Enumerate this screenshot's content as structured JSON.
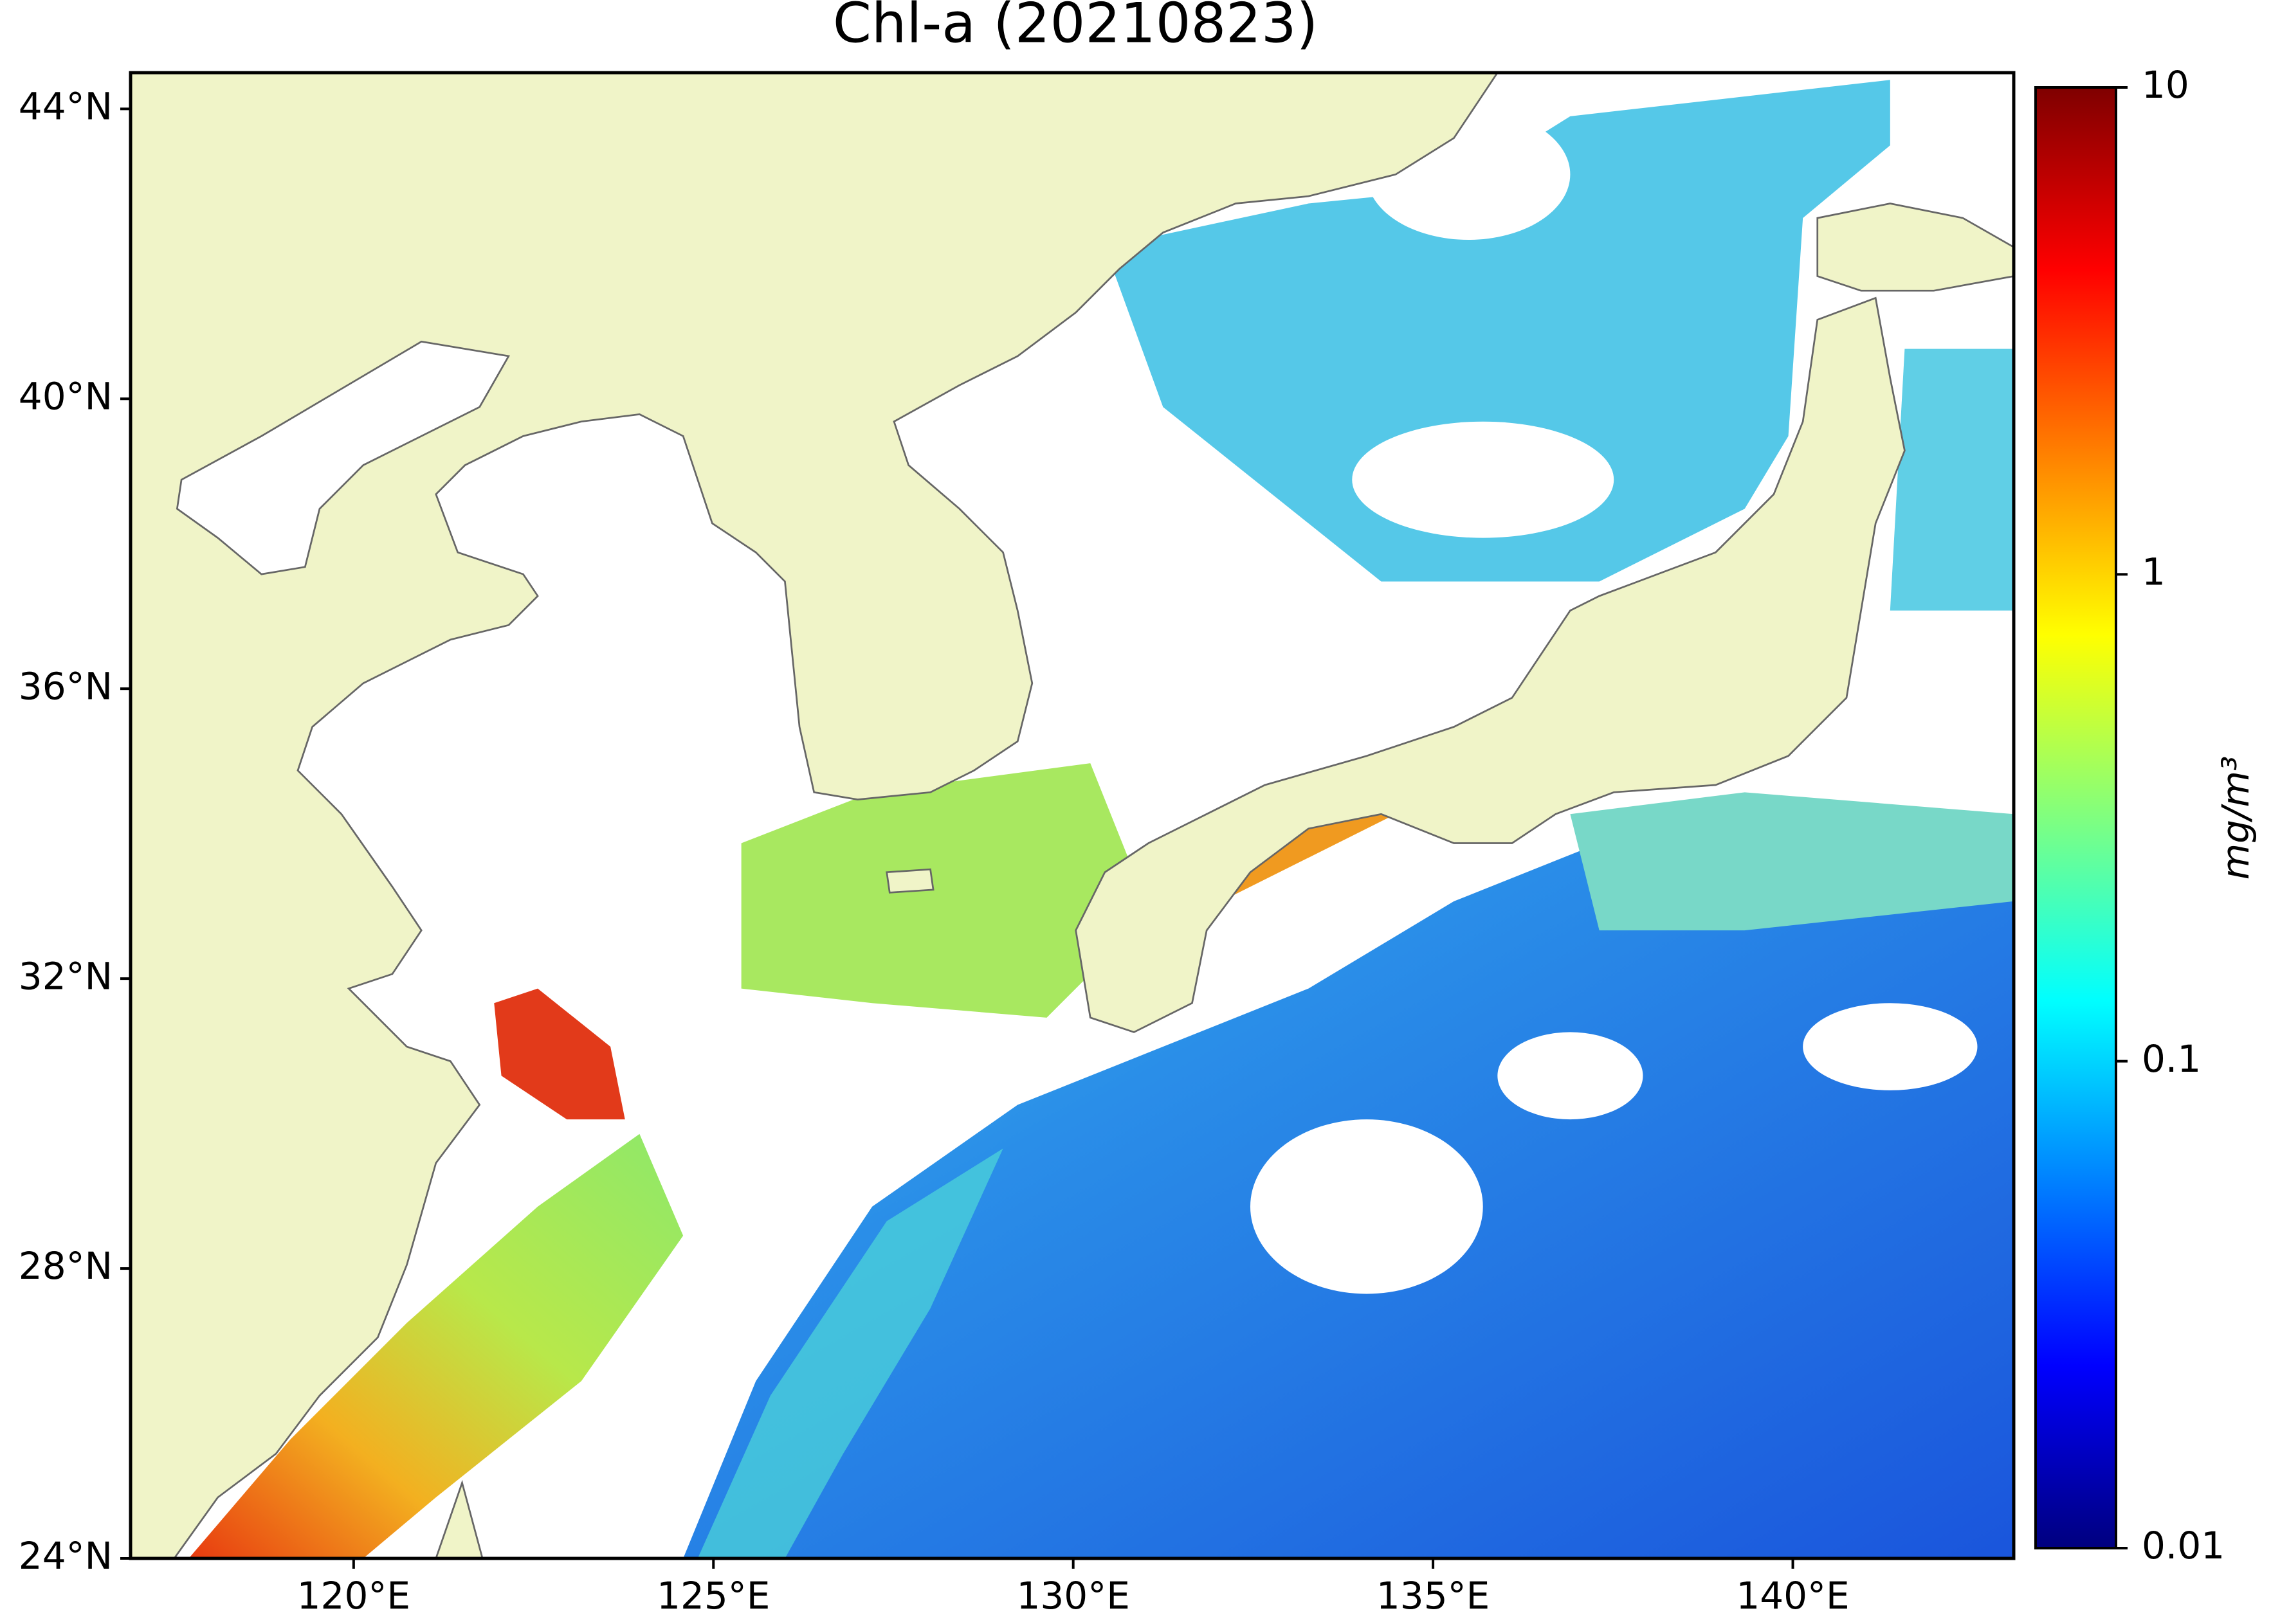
{
  "title": "Chl-a (20210823)",
  "map": {
    "xlim": [
      116.9,
      143.07
    ],
    "ylim": [
      24,
      44.5
    ],
    "xticks": [
      {
        "value": 120,
        "label": "120°E"
      },
      {
        "value": 125,
        "label": "125°E"
      },
      {
        "value": 130,
        "label": "130°E"
      },
      {
        "value": 135,
        "label": "135°E"
      },
      {
        "value": 140,
        "label": "140°E"
      }
    ],
    "yticks": [
      {
        "value": 24,
        "label": "24°N"
      },
      {
        "value": 28,
        "label": "28°N"
      },
      {
        "value": 32,
        "label": "32°N"
      },
      {
        "value": 36,
        "label": "36°N"
      },
      {
        "value": 40,
        "label": "40°N"
      },
      {
        "value": 44,
        "label": "44°N"
      }
    ]
  },
  "colorbar": {
    "label": "mg/m³",
    "scale": "log",
    "lim": [
      0.01,
      10
    ],
    "ticks": [
      0.01,
      0.1,
      1,
      10
    ]
  }
}
